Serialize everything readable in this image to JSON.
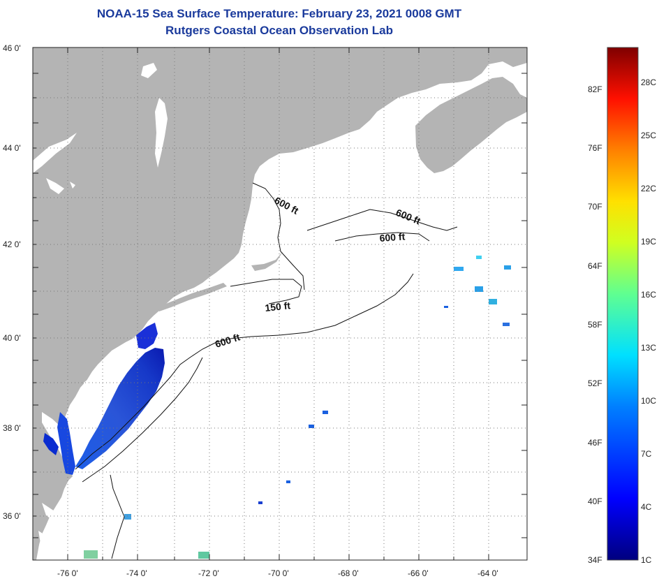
{
  "title": {
    "line1": "NOAA-15 Sea Surface Temperature:  February 23, 2021 0008 GMT",
    "line2": "Rutgers Coastal Ocean Observation Lab"
  },
  "colors": {
    "title": "#1a3a9c",
    "land": "#b4b4b4",
    "ocean": "#ffffff",
    "warm_scale_top": "#7f0000",
    "cold_scale_bottom": "#00007f"
  },
  "axes": {
    "latitude_labels": [
      "46 0'",
      "44 0'",
      "42 0'",
      "40 0'",
      "38 0'",
      "36 0'"
    ],
    "longitude_labels": [
      "-76 0'",
      "-74 0'",
      "-72 0'",
      "-70 0'",
      "-68 0'",
      "-66 0'",
      "-64 0'"
    ]
  },
  "contours": {
    "labels": [
      "600 ft",
      "600 ft",
      "600 ft",
      "150 ft",
      "600 ft"
    ]
  },
  "colorbar": {
    "fahrenheit": [
      "82F",
      "76F",
      "70F",
      "64F",
      "58F",
      "52F",
      "46F",
      "40F",
      "34F"
    ],
    "celsius": [
      "28C",
      "25C",
      "22C",
      "19C",
      "16C",
      "13C",
      "10C",
      "7C",
      "4C",
      "1C"
    ]
  }
}
